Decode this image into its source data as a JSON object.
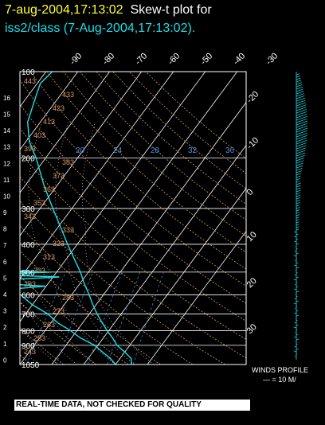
{
  "title": {
    "timestamp": "7-aug-2004,17:13:02",
    "text": "Skew-t plot for",
    "dataset": "iss2/class (7-Aug-2004,17:13:02)."
  },
  "colors": {
    "background": "#000000",
    "sounding": "#19e0e8",
    "isotherm": "#ffffff",
    "isobar": "#ffffff",
    "dry_adiabat": "#d89a6a",
    "moist_adiabat": "#ffffff",
    "mixing_ratio": "#4a90d9",
    "title_yellow": "#ffff33",
    "title_white": "#ffffff"
  },
  "footer": {
    "qc_banner": "REAL-TIME DATA, NOT CHECKED FOR QUALITY",
    "winds_label": "WINDS PROFILE",
    "winds_scale": "— = 10 M/"
  },
  "chart_data": {
    "type": "skew-t",
    "pressure_levels_hpa": [
      100,
      200,
      300,
      400,
      500,
      600,
      700,
      800,
      900,
      1050
    ],
    "height_km_ticks": [
      0,
      1,
      2,
      3,
      4,
      5,
      6,
      7,
      8,
      9,
      10,
      11,
      12,
      13,
      14,
      15,
      16
    ],
    "isotherms_c": [
      -90,
      -80,
      -70,
      -60,
      -50,
      -40,
      -30,
      -20,
      -10,
      0,
      10,
      20,
      30
    ],
    "isotherm_top_labels": [
      "-90",
      "-80",
      "-70",
      "-60",
      "-50",
      "-40",
      "-30"
    ],
    "isotherm_side_labels": [
      "-20",
      "-10",
      "0",
      "10",
      "20",
      "30"
    ],
    "dry_adiabat_labels": [
      "243",
      "253",
      "263",
      "273",
      "283",
      "293",
      "303",
      "313",
      "323",
      "333",
      "343",
      "353",
      "363",
      "373",
      "383",
      "393",
      "403",
      "413",
      "423",
      "433",
      "443",
      "453"
    ],
    "mixing_ratio_labels": [
      "20",
      "24",
      "28",
      "32",
      "36"
    ],
    "temperature_series": [
      [
        1050,
        25
      ],
      [
        1000,
        23.5
      ],
      [
        950,
        20
      ],
      [
        900,
        16
      ],
      [
        850,
        13
      ],
      [
        800,
        9.5
      ],
      [
        750,
        6
      ],
      [
        700,
        2.5
      ],
      [
        650,
        -1
      ],
      [
        600,
        -4.5
      ],
      [
        550,
        -8.5
      ],
      [
        500,
        -12.5
      ],
      [
        450,
        -17.5
      ],
      [
        400,
        -23
      ],
      [
        350,
        -29
      ],
      [
        300,
        -36
      ],
      [
        250,
        -44
      ],
      [
        200,
        -53
      ],
      [
        175,
        -59
      ],
      [
        150,
        -64
      ],
      [
        125,
        -67
      ],
      [
        110,
        -69
      ],
      [
        100,
        -68
      ]
    ],
    "dewpoint_series": [
      [
        1050,
        20
      ],
      [
        1000,
        17
      ],
      [
        950,
        13
      ],
      [
        900,
        9
      ],
      [
        850,
        3
      ],
      [
        800,
        -2
      ],
      [
        750,
        -8
      ],
      [
        700,
        -13
      ],
      [
        650,
        -20
      ],
      [
        600,
        -26
      ],
      [
        575,
        -32
      ],
      [
        560,
        -20
      ],
      [
        540,
        -45
      ],
      [
        520,
        -18
      ],
      [
        510,
        -40
      ],
      [
        500,
        -22
      ],
      [
        490,
        -50
      ],
      [
        470,
        -35
      ],
      [
        450,
        -56
      ],
      [
        430,
        -48
      ],
      [
        400,
        -62
      ],
      [
        380,
        -64
      ],
      [
        360,
        -70
      ],
      [
        340,
        -67
      ],
      [
        300,
        -74
      ],
      [
        280,
        -73
      ],
      [
        250,
        -79
      ],
      [
        220,
        -84
      ],
      [
        200,
        -89
      ],
      [
        170,
        -90
      ],
      [
        150,
        -93
      ],
      [
        125,
        -97
      ],
      [
        100,
        -100
      ]
    ]
  }
}
